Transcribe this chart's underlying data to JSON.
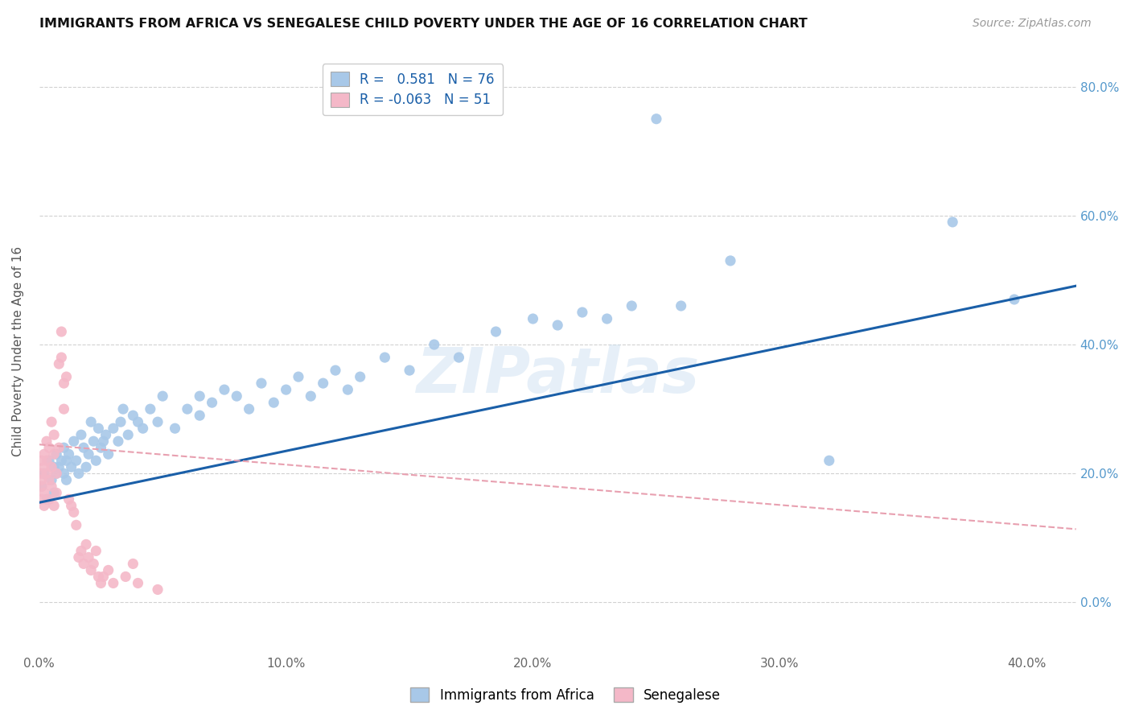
{
  "title": "IMMIGRANTS FROM AFRICA VS SENEGALESE CHILD POVERTY UNDER THE AGE OF 16 CORRELATION CHART",
  "source": "Source: ZipAtlas.com",
  "xlim": [
    0.0,
    0.42
  ],
  "ylim": [
    -0.08,
    0.86
  ],
  "ytick_vals": [
    0.0,
    0.2,
    0.4,
    0.6,
    0.8
  ],
  "ytick_labels": [
    "0.0%",
    "20.0%",
    "40.0%",
    "60.0%",
    "80.0%"
  ],
  "xtick_vals": [
    0.0,
    0.1,
    0.2,
    0.3,
    0.4
  ],
  "xtick_labels": [
    "0.0%",
    "10.0%",
    "20.0%",
    "30.0%",
    "40.0%"
  ],
  "blue_color": "#a8c8e8",
  "pink_color": "#f4b8c8",
  "blue_line_color": "#1a5fa8",
  "pink_line_color": "#e8a0b0",
  "watermark": "ZIPatlas",
  "blue_line_x0": 0.0,
  "blue_line_y0": 0.155,
  "blue_line_x1": 0.4,
  "blue_line_y1": 0.475,
  "pink_line_x0": 0.0,
  "pink_line_y0": 0.245,
  "pink_line_x1": 0.4,
  "pink_line_y1": 0.12,
  "africa_x": [
    0.001,
    0.002,
    0.003,
    0.004,
    0.005,
    0.006,
    0.006,
    0.007,
    0.007,
    0.008,
    0.009,
    0.01,
    0.01,
    0.011,
    0.011,
    0.012,
    0.013,
    0.014,
    0.015,
    0.016,
    0.017,
    0.018,
    0.019,
    0.02,
    0.021,
    0.022,
    0.023,
    0.024,
    0.025,
    0.026,
    0.027,
    0.028,
    0.03,
    0.032,
    0.033,
    0.034,
    0.036,
    0.038,
    0.04,
    0.042,
    0.045,
    0.048,
    0.05,
    0.055,
    0.06,
    0.065,
    0.065,
    0.07,
    0.075,
    0.08,
    0.085,
    0.09,
    0.095,
    0.1,
    0.105,
    0.11,
    0.115,
    0.12,
    0.125,
    0.13,
    0.14,
    0.15,
    0.16,
    0.17,
    0.185,
    0.2,
    0.21,
    0.22,
    0.23,
    0.24,
    0.25,
    0.26,
    0.28,
    0.32,
    0.37,
    0.395
  ],
  "africa_y": [
    0.18,
    0.2,
    0.16,
    0.22,
    0.19,
    0.21,
    0.17,
    0.23,
    0.2,
    0.21,
    0.22,
    0.2,
    0.24,
    0.19,
    0.22,
    0.23,
    0.21,
    0.25,
    0.22,
    0.2,
    0.26,
    0.24,
    0.21,
    0.23,
    0.28,
    0.25,
    0.22,
    0.27,
    0.24,
    0.25,
    0.26,
    0.23,
    0.27,
    0.25,
    0.28,
    0.3,
    0.26,
    0.29,
    0.28,
    0.27,
    0.3,
    0.28,
    0.32,
    0.27,
    0.3,
    0.32,
    0.29,
    0.31,
    0.33,
    0.32,
    0.3,
    0.34,
    0.31,
    0.33,
    0.35,
    0.32,
    0.34,
    0.36,
    0.33,
    0.35,
    0.38,
    0.36,
    0.4,
    0.38,
    0.42,
    0.44,
    0.43,
    0.45,
    0.44,
    0.46,
    0.75,
    0.46,
    0.53,
    0.22,
    0.59,
    0.47
  ],
  "senegal_x": [
    0.001,
    0.001,
    0.001,
    0.001,
    0.001,
    0.002,
    0.002,
    0.002,
    0.002,
    0.003,
    0.003,
    0.003,
    0.004,
    0.004,
    0.004,
    0.005,
    0.005,
    0.005,
    0.006,
    0.006,
    0.006,
    0.007,
    0.007,
    0.008,
    0.008,
    0.009,
    0.009,
    0.01,
    0.01,
    0.011,
    0.012,
    0.013,
    0.014,
    0.015,
    0.016,
    0.017,
    0.018,
    0.019,
    0.02,
    0.021,
    0.022,
    0.023,
    0.024,
    0.025,
    0.026,
    0.028,
    0.03,
    0.035,
    0.038,
    0.04,
    0.048
  ],
  "senegal_y": [
    0.2,
    0.18,
    0.22,
    0.16,
    0.19,
    0.21,
    0.17,
    0.23,
    0.15,
    0.2,
    0.25,
    0.22,
    0.19,
    0.24,
    0.16,
    0.21,
    0.28,
    0.18,
    0.15,
    0.26,
    0.23,
    0.2,
    0.17,
    0.24,
    0.37,
    0.42,
    0.38,
    0.34,
    0.3,
    0.35,
    0.16,
    0.15,
    0.14,
    0.12,
    0.07,
    0.08,
    0.06,
    0.09,
    0.07,
    0.05,
    0.06,
    0.08,
    0.04,
    0.03,
    0.04,
    0.05,
    0.03,
    0.04,
    0.06,
    0.03,
    0.02
  ]
}
